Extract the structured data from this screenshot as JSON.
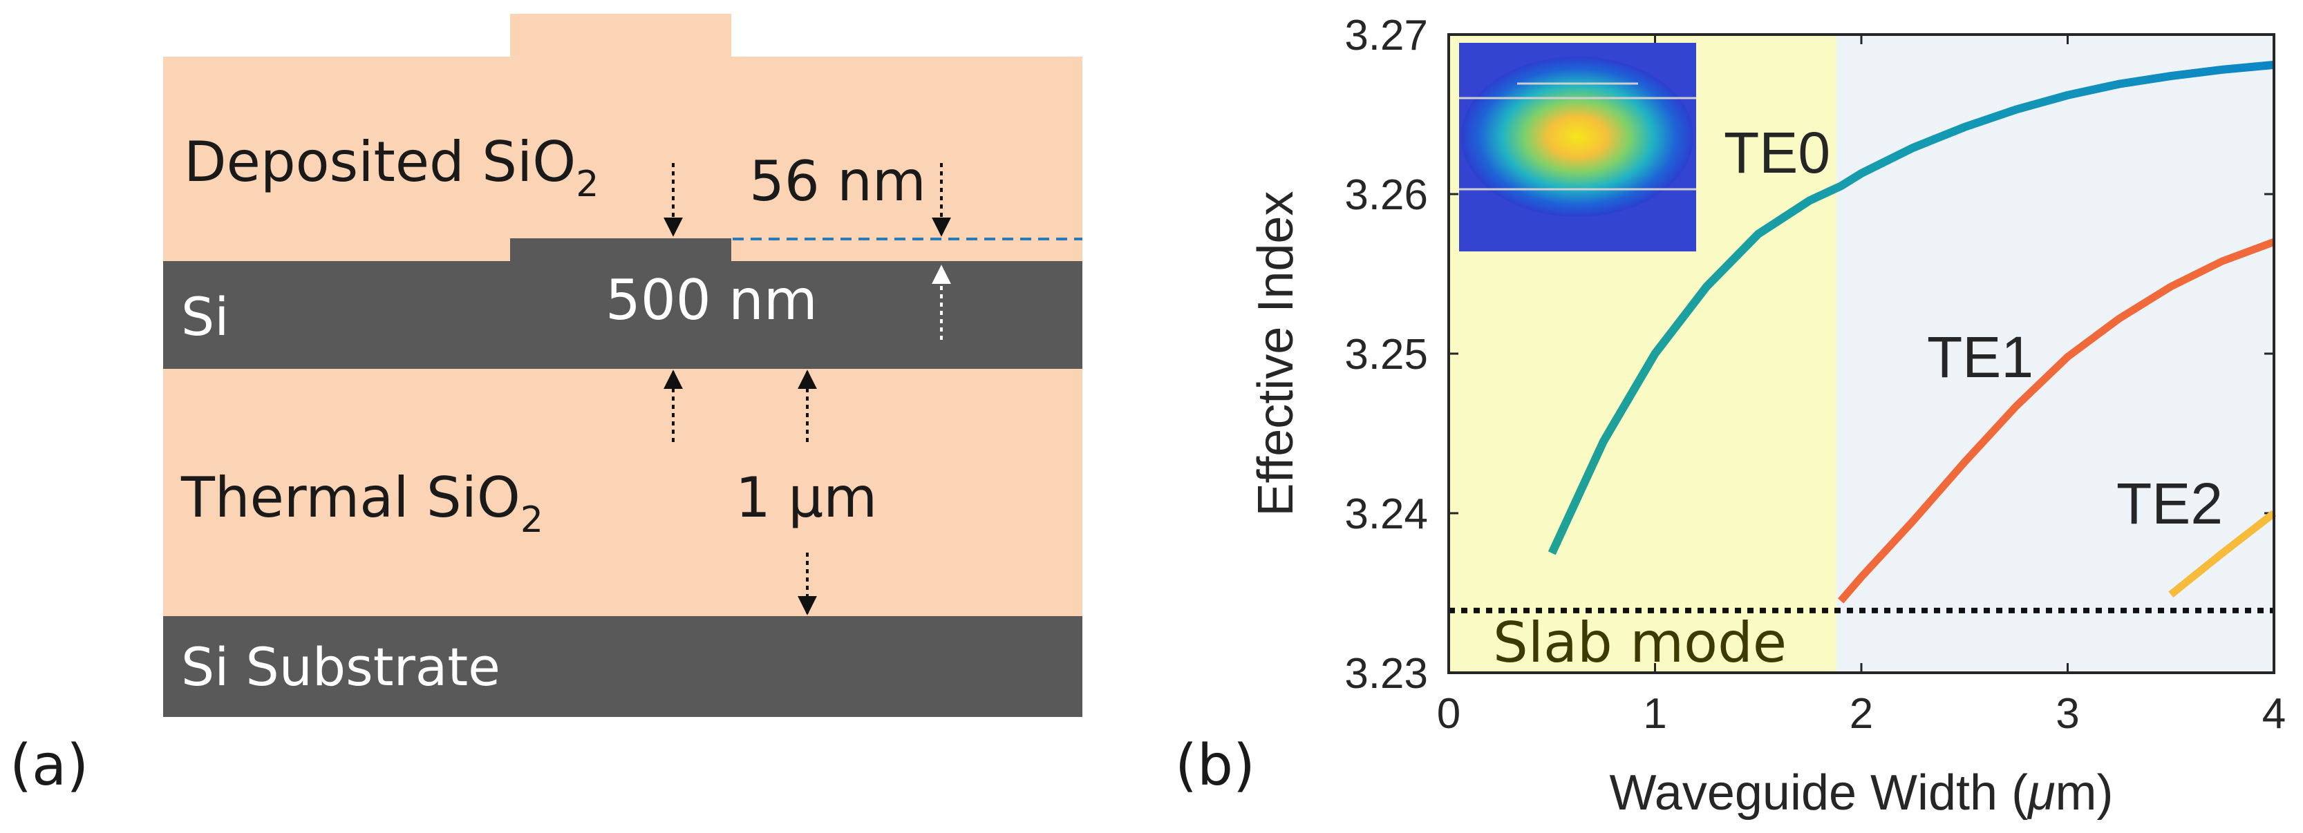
{
  "panel_a": {
    "label": "(a)",
    "layers": {
      "deposited": {
        "text": "Deposited SiO",
        "sub": "2"
      },
      "si": {
        "text": "Si"
      },
      "thermal": {
        "text": "Thermal SiO",
        "sub": "2"
      },
      "substrate": {
        "text": "Si Substrate"
      }
    },
    "dimensions": {
      "etch_depth": "56 nm",
      "si_thickness": "500 nm",
      "box_thickness": "1 μm"
    },
    "colors": {
      "oxide": "#fbd3b5",
      "silicon": "#595959"
    }
  },
  "panel_b": {
    "label": "(b)",
    "mode_labels": {
      "te0": "TE0",
      "te1": "TE1",
      "te2": "TE2"
    },
    "slab_label": "Slab mode",
    "colors": {
      "te0_start": "#1fa196",
      "te0_end": "#0d86c6",
      "te1": "#f0693a",
      "te2": "#f6bb3a",
      "yellow_region": "#fafac4",
      "blue_region": "#eef3f8",
      "slab_line": "#111111"
    }
  },
  "chart_data": {
    "type": "line",
    "title": "",
    "xlabel_prefix": "Waveguide Width (",
    "xlabel_mu": "μ",
    "xlabel_suffix": "m)",
    "ylabel": "Effective Index",
    "xlim": [
      0,
      4
    ],
    "ylim": [
      3.23,
      3.27
    ],
    "x_ticks": [
      0,
      1,
      2,
      3,
      4
    ],
    "x_tick_labels": [
      "0",
      "1",
      "2",
      "3",
      "4"
    ],
    "y_ticks": [
      3.23,
      3.24,
      3.25,
      3.26,
      3.27
    ],
    "y_tick_labels": [
      "3.23",
      "3.24",
      "3.25",
      "3.26",
      "3.27"
    ],
    "shaded_regions": [
      {
        "name": "yellow",
        "x_start": 0,
        "x_end": 1.88
      },
      {
        "name": "blue",
        "x_start": 1.88,
        "x_end": 4
      }
    ],
    "series": [
      {
        "name": "TE0",
        "x": [
          0.5,
          0.75,
          1.0,
          1.25,
          1.5,
          1.75,
          1.9,
          2.0,
          2.25,
          2.5,
          2.75,
          3.0,
          3.25,
          3.5,
          3.75,
          4.0
        ],
        "y": [
          3.2375,
          3.2445,
          3.25,
          3.2542,
          3.2575,
          3.2596,
          3.2605,
          3.2613,
          3.2629,
          3.2642,
          3.2653,
          3.2662,
          3.2669,
          3.2674,
          3.2678,
          3.2681
        ]
      },
      {
        "name": "TE1",
        "x": [
          1.9,
          2.0,
          2.25,
          2.5,
          2.75,
          3.0,
          3.25,
          3.5,
          3.75,
          4.0
        ],
        "y": [
          3.2345,
          3.236,
          3.2395,
          3.2432,
          3.2467,
          3.2498,
          3.2522,
          3.2542,
          3.2558,
          3.257
        ]
      },
      {
        "name": "TE2",
        "x": [
          3.5,
          3.75,
          4.0
        ],
        "y": [
          3.2349,
          3.2375,
          3.24
        ]
      }
    ],
    "slab_mode": {
      "name": "Slab mode",
      "y": 3.2339,
      "x_start": 0,
      "x_end": 4
    }
  }
}
